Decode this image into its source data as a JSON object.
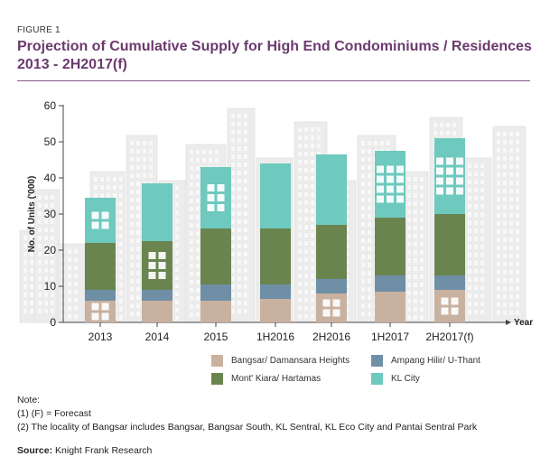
{
  "figure_label": "FIGURE 1",
  "title": "Projection of Cumulative Supply for High End Condominiums / Residences 2013 - 2H2017(f)",
  "notes": {
    "heading": "Note:",
    "lines": [
      "(1) (F) = Forecast",
      "(2) The locality of Bangsar includes Bangsar, Bangsar South, KL Sentral, KL Eco City and Pantai Sentral Park"
    ]
  },
  "source": {
    "label": "Source:",
    "text": "Knight Frank Research"
  },
  "colors": {
    "Bangsar/ Damansara Heights": "#c9b1a0",
    "Ampang Hilir/ U-Thant": "#6e8fa6",
    "Mont' Kiara/ Hartamas": "#6a8450",
    "KL City": "#6ec9be"
  },
  "chart_data": {
    "type": "bar",
    "stacked": true,
    "categories": [
      "2013",
      "2014",
      "2015",
      "1H2016",
      "2H2016",
      "1H2017",
      "2H2017(f)"
    ],
    "series": [
      {
        "name": "Bangsar/ Damansara Heights",
        "values": [
          6.0,
          6.0,
          6.0,
          6.5,
          8.0,
          8.5,
          9.0
        ]
      },
      {
        "name": "Ampang Hilir/ U-Thant",
        "values": [
          3.0,
          3.0,
          4.5,
          4.0,
          4.0,
          4.5,
          4.0
        ]
      },
      {
        "name": "Mont' Kiara/ Hartamas",
        "values": [
          13.0,
          13.5,
          15.5,
          15.5,
          15.0,
          16.0,
          17.0
        ]
      },
      {
        "name": "KL City",
        "values": [
          12.5,
          16.0,
          17.0,
          18.0,
          19.5,
          18.5,
          21.0
        ]
      }
    ],
    "yticks": [
      "0",
      "10",
      "20",
      "30",
      "40",
      "50",
      "60"
    ],
    "ylim": [
      0,
      60
    ],
    "ylabel": "No. of Units ('000)",
    "xlabel": "Year",
    "grid": false,
    "legend_position": "bottom-right"
  }
}
